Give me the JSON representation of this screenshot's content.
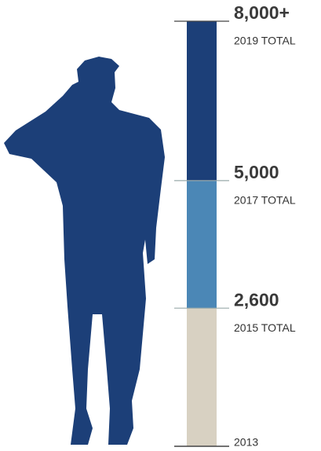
{
  "chart_data": {
    "type": "milestone-bar",
    "baseline_label": "2013",
    "categories": [
      "2015 TOTAL",
      "2017 TOTAL",
      "2019 TOTAL"
    ],
    "values": [
      2600,
      5000,
      8000
    ],
    "value_labels": [
      "2,600",
      "5,000",
      "8,000+"
    ],
    "colors": [
      "#d8d1c2",
      "#4b87b6",
      "#1c3f78"
    ],
    "ylim": [
      0,
      8000
    ]
  }
}
